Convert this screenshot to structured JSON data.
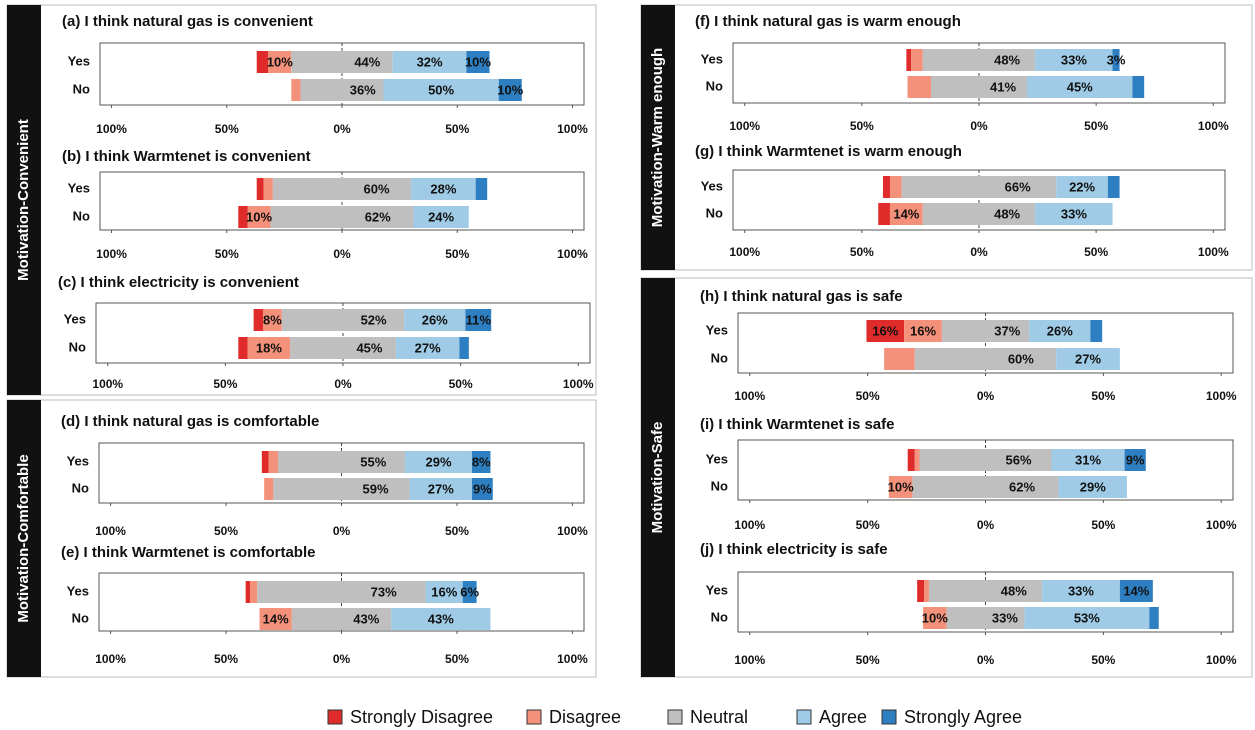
{
  "groups": [
    {
      "label": "Motivation-Convenient"
    },
    {
      "label": "Motivation-Comfortable"
    },
    {
      "label": "Motivation-Warm enough"
    },
    {
      "label": "Motivation-Safe"
    }
  ],
  "legend": {
    "items": [
      {
        "name": "Strongly Disagree",
        "color": "#e02b2b"
      },
      {
        "name": "Disagree",
        "color": "#f4917a"
      },
      {
        "name": "Neutral",
        "color": "#bfbfbf"
      },
      {
        "name": "Agree",
        "color": "#9fcbe6"
      },
      {
        "name": "Strongly Agree",
        "color": "#2e7fc1"
      }
    ]
  },
  "chart_data": [
    {
      "type": "diverging_bar",
      "title": "(a) I think natural gas is convenient",
      "categories": [
        "Yes",
        "No"
      ],
      "xlim": [
        -105,
        105
      ],
      "xticks": [
        {
          "value": -100,
          "label": "100%"
        },
        {
          "value": -50,
          "label": "50%"
        },
        {
          "value": 0,
          "label": "0%"
        },
        {
          "value": 50,
          "label": "50%"
        },
        {
          "value": 100,
          "label": "100%"
        }
      ],
      "series": [
        {
          "values": [
            5,
            0
          ],
          "value_labels": [
            null,
            null
          ]
        },
        {
          "values": [
            10,
            4
          ],
          "value_labels": [
            "10%",
            null
          ]
        },
        {
          "values": [
            44,
            36
          ],
          "value_labels": [
            "44%",
            "36%"
          ]
        },
        {
          "values": [
            32,
            50
          ],
          "value_labels": [
            "32%",
            "50%"
          ]
        },
        {
          "values": [
            10,
            10
          ],
          "value_labels": [
            "10%",
            "10%"
          ]
        }
      ]
    },
    {
      "type": "diverging_bar",
      "title": "(b) I think Warmtenet is convenient",
      "categories": [
        "Yes",
        "No"
      ],
      "xlim": [
        -105,
        105
      ],
      "xticks": [
        {
          "value": -100,
          "label": "100%"
        },
        {
          "value": -50,
          "label": "50%"
        },
        {
          "value": 0,
          "label": "0%"
        },
        {
          "value": 50,
          "label": "50%"
        },
        {
          "value": 100,
          "label": "100%"
        }
      ],
      "series": [
        {
          "values": [
            3,
            4
          ],
          "value_labels": [
            null,
            null
          ]
        },
        {
          "values": [
            4,
            10
          ],
          "value_labels": [
            null,
            "10%"
          ]
        },
        {
          "values": [
            60,
            62
          ],
          "value_labels": [
            "60%",
            "62%"
          ]
        },
        {
          "values": [
            28,
            24
          ],
          "value_labels": [
            "28%",
            "24%"
          ]
        },
        {
          "values": [
            5,
            0
          ],
          "value_labels": [
            null,
            null
          ]
        }
      ]
    },
    {
      "type": "diverging_bar",
      "title": "(c) I think electricity is convenient",
      "categories": [
        "Yes",
        "No"
      ],
      "xlim": [
        -105,
        105
      ],
      "xticks": [
        {
          "value": -100,
          "label": "100%"
        },
        {
          "value": -50,
          "label": "50%"
        },
        {
          "value": 0,
          "label": "0%"
        },
        {
          "value": 50,
          "label": "50%"
        },
        {
          "value": 100,
          "label": "100%"
        }
      ],
      "series": [
        {
          "values": [
            4,
            4
          ],
          "value_labels": [
            null,
            null
          ]
        },
        {
          "values": [
            8,
            18
          ],
          "value_labels": [
            "8%",
            "18%"
          ]
        },
        {
          "values": [
            52,
            45
          ],
          "value_labels": [
            "52%",
            "45%"
          ]
        },
        {
          "values": [
            26,
            27
          ],
          "value_labels": [
            "26%",
            "27%"
          ]
        },
        {
          "values": [
            11,
            4
          ],
          "value_labels": [
            "11%",
            null
          ]
        }
      ]
    },
    {
      "type": "diverging_bar",
      "title": "(d) I think natural gas is comfortable",
      "categories": [
        "Yes",
        "No"
      ],
      "xlim": [
        -105,
        105
      ],
      "xticks": [
        {
          "value": -100,
          "label": "100%"
        },
        {
          "value": -50,
          "label": "50%"
        },
        {
          "value": 0,
          "label": "0%"
        },
        {
          "value": 50,
          "label": "50%"
        },
        {
          "value": 100,
          "label": "100%"
        }
      ],
      "series": [
        {
          "values": [
            3,
            0
          ],
          "value_labels": [
            null,
            null
          ]
        },
        {
          "values": [
            4,
            4
          ],
          "value_labels": [
            null,
            null
          ]
        },
        {
          "values": [
            55,
            59
          ],
          "value_labels": [
            "55%",
            "59%"
          ]
        },
        {
          "values": [
            29,
            27
          ],
          "value_labels": [
            "29%",
            "27%"
          ]
        },
        {
          "values": [
            8,
            9
          ],
          "value_labels": [
            "8%",
            "9%"
          ]
        }
      ]
    },
    {
      "type": "diverging_bar",
      "title": "(e) I think Warmtenet is comfortable",
      "categories": [
        "Yes",
        "No"
      ],
      "xlim": [
        -105,
        105
      ],
      "xticks": [
        {
          "value": -100,
          "label": "100%"
        },
        {
          "value": -50,
          "label": "50%"
        },
        {
          "value": 0,
          "label": "0%"
        },
        {
          "value": 50,
          "label": "50%"
        },
        {
          "value": 100,
          "label": "100%"
        }
      ],
      "series": [
        {
          "values": [
            2,
            0
          ],
          "value_labels": [
            null,
            null
          ]
        },
        {
          "values": [
            3,
            14
          ],
          "value_labels": [
            null,
            "14%"
          ]
        },
        {
          "values": [
            73,
            43
          ],
          "value_labels": [
            "73%",
            "43%"
          ]
        },
        {
          "values": [
            16,
            43
          ],
          "value_labels": [
            "16%",
            "43%"
          ]
        },
        {
          "values": [
            6,
            0
          ],
          "value_labels": [
            "6%",
            null
          ]
        }
      ]
    },
    {
      "type": "diverging_bar",
      "title": "(f) I think natural gas is warm enough",
      "categories": [
        "Yes",
        "No"
      ],
      "xlim": [
        -105,
        105
      ],
      "xticks": [
        {
          "value": -100,
          "label": "100%"
        },
        {
          "value": -50,
          "label": "50%"
        },
        {
          "value": 0,
          "label": "0%"
        },
        {
          "value": 50,
          "label": "50%"
        },
        {
          "value": 100,
          "label": "100%"
        }
      ],
      "series": [
        {
          "values": [
            2,
            0
          ],
          "value_labels": [
            null,
            null
          ]
        },
        {
          "values": [
            5,
            10
          ],
          "value_labels": [
            null,
            null
          ]
        },
        {
          "values": [
            48,
            41
          ],
          "value_labels": [
            "48%",
            "41%"
          ]
        },
        {
          "values": [
            33,
            45
          ],
          "value_labels": [
            "33%",
            "45%"
          ]
        },
        {
          "values": [
            3,
            5
          ],
          "value_labels": [
            "3%",
            null
          ]
        }
      ]
    },
    {
      "type": "diverging_bar",
      "title": "(g) I think Warmtenet is warm enough",
      "categories": [
        "Yes",
        "No"
      ],
      "xlim": [
        -105,
        105
      ],
      "xticks": [
        {
          "value": -100,
          "label": "100%"
        },
        {
          "value": -50,
          "label": "50%"
        },
        {
          "value": 0,
          "label": "0%"
        },
        {
          "value": 50,
          "label": "50%"
        },
        {
          "value": 100,
          "label": "100%"
        }
      ],
      "series": [
        {
          "values": [
            3,
            5
          ],
          "value_labels": [
            null,
            null
          ]
        },
        {
          "values": [
            5,
            14
          ],
          "value_labels": [
            null,
            "14%"
          ]
        },
        {
          "values": [
            66,
            48
          ],
          "value_labels": [
            "66%",
            "48%"
          ]
        },
        {
          "values": [
            22,
            33
          ],
          "value_labels": [
            "22%",
            "33%"
          ]
        },
        {
          "values": [
            5,
            0
          ],
          "value_labels": [
            null,
            null
          ]
        }
      ]
    },
    {
      "type": "diverging_bar",
      "title": "(h) I think natural gas is safe",
      "categories": [
        "Yes",
        "No"
      ],
      "xlim": [
        -105,
        105
      ],
      "xticks": [
        {
          "value": -100,
          "label": "100%"
        },
        {
          "value": -50,
          "label": "50%"
        },
        {
          "value": 0,
          "label": "0%"
        },
        {
          "value": 50,
          "label": "50%"
        },
        {
          "value": 100,
          "label": "100%"
        }
      ],
      "series": [
        {
          "values": [
            16,
            0
          ],
          "value_labels": [
            "16%",
            null
          ]
        },
        {
          "values": [
            16,
            13
          ],
          "value_labels": [
            "16%",
            null
          ]
        },
        {
          "values": [
            37,
            60
          ],
          "value_labels": [
            "37%",
            "60%"
          ]
        },
        {
          "values": [
            26,
            27
          ],
          "value_labels": [
            "26%",
            "27%"
          ]
        },
        {
          "values": [
            5,
            0
          ],
          "value_labels": [
            null,
            null
          ]
        }
      ]
    },
    {
      "type": "diverging_bar",
      "title": "(i) I think Warmtenet is safe",
      "categories": [
        "Yes",
        "No"
      ],
      "xlim": [
        -105,
        105
      ],
      "xticks": [
        {
          "value": -100,
          "label": "100%"
        },
        {
          "value": -50,
          "label": "50%"
        },
        {
          "value": 0,
          "label": "0%"
        },
        {
          "value": 50,
          "label": "50%"
        },
        {
          "value": 100,
          "label": "100%"
        }
      ],
      "series": [
        {
          "values": [
            3,
            0
          ],
          "value_labels": [
            null,
            null
          ]
        },
        {
          "values": [
            2,
            10
          ],
          "value_labels": [
            null,
            "10%"
          ]
        },
        {
          "values": [
            56,
            62
          ],
          "value_labels": [
            "56%",
            "62%"
          ]
        },
        {
          "values": [
            31,
            29
          ],
          "value_labels": [
            "31%",
            "29%"
          ]
        },
        {
          "values": [
            9,
            0
          ],
          "value_labels": [
            "9%",
            null
          ]
        }
      ]
    },
    {
      "type": "diverging_bar",
      "title": "(j) I think electricity is safe",
      "categories": [
        "Yes",
        "No"
      ],
      "xlim": [
        -105,
        105
      ],
      "xticks": [
        {
          "value": -100,
          "label": "100%"
        },
        {
          "value": -50,
          "label": "50%"
        },
        {
          "value": 0,
          "label": "0%"
        },
        {
          "value": 50,
          "label": "50%"
        },
        {
          "value": 100,
          "label": "100%"
        }
      ],
      "series": [
        {
          "values": [
            3,
            0
          ],
          "value_labels": [
            null,
            null
          ]
        },
        {
          "values": [
            2,
            10
          ],
          "value_labels": [
            null,
            "10%"
          ]
        },
        {
          "values": [
            48,
            33
          ],
          "value_labels": [
            "48%",
            "33%"
          ]
        },
        {
          "values": [
            33,
            53
          ],
          "value_labels": [
            "33%",
            "53%"
          ]
        },
        {
          "values": [
            14,
            4
          ],
          "value_labels": [
            "14%",
            null
          ]
        }
      ]
    }
  ]
}
